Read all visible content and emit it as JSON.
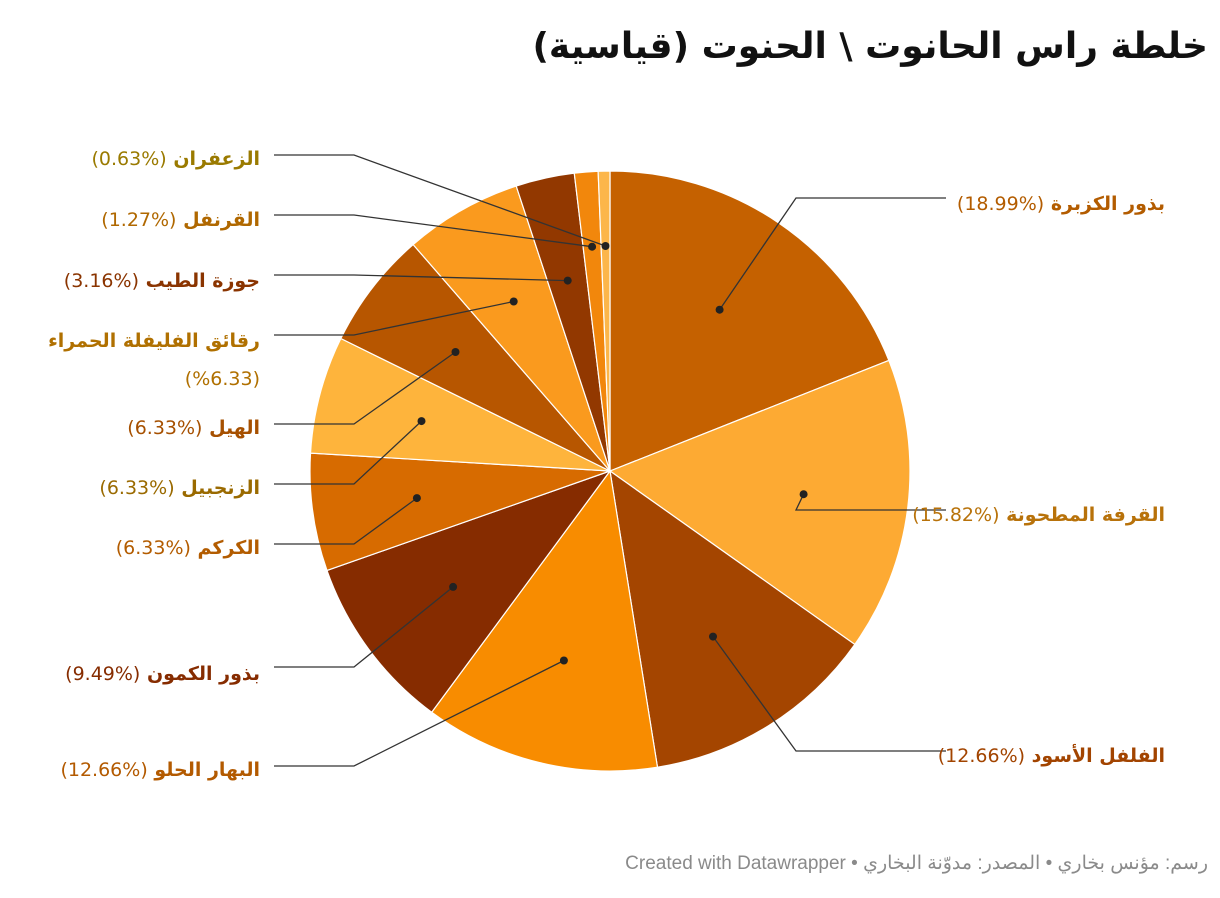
{
  "colors": {
    "title": "#111111",
    "footer": "#8a8a8a",
    "leader_line": "#333333"
  },
  "chart_data": {
    "type": "pie",
    "title": "خلطة راس الحانوت \\ الحنوت (قياسية)",
    "legend": "none",
    "slices": [
      {
        "label": "بذور الكزبرة",
        "pct_text": "(%18.99)",
        "value": 18.99,
        "color": "#c56100",
        "label_color": "#b35c00"
      },
      {
        "label": "القرفة المطحونة",
        "pct_text": "(%15.82)",
        "value": 15.82,
        "color": "#fdaa33",
        "label_color": "#b8720a"
      },
      {
        "label": "الفلفل الأسود",
        "pct_text": "(%12.66)",
        "value": 12.66,
        "color": "#a44500",
        "label_color": "#a24400"
      },
      {
        "label": "البهار الحلو",
        "pct_text": "(%12.66)",
        "value": 12.66,
        "color": "#f88c00",
        "label_color": "#b35a00"
      },
      {
        "label": "بذور الكمون",
        "pct_text": "(%9.49)",
        "value": 9.49,
        "color": "#862c00",
        "label_color": "#862c00"
      },
      {
        "label": "الكركم",
        "pct_text": "(%6.33)",
        "value": 6.33,
        "color": "#d76b00",
        "label_color": "#b35c00"
      },
      {
        "label": "الزنجبيل",
        "pct_text": "(%6.33)",
        "value": 6.33,
        "color": "#feb43c",
        "label_color": "#9a6a00"
      },
      {
        "label": "الهيل",
        "pct_text": "(%6.33)",
        "value": 6.33,
        "color": "#b75600",
        "label_color": "#a65000"
      },
      {
        "label": "رقائق الفليفلة الحمراء",
        "pct_text": "(%6.33)",
        "value": 6.33,
        "color": "#fa9a1e",
        "label_color": "#b07000"
      },
      {
        "label": "جوزة الطيب",
        "pct_text": "(%3.16)",
        "value": 3.16,
        "color": "#923800",
        "label_color": "#8a3400"
      },
      {
        "label": "القرنفل",
        "pct_text": "(%1.27)",
        "value": 1.27,
        "color": "#f2870c",
        "label_color": "#b06800"
      },
      {
        "label": "الزعفران",
        "pct_text": "(%0.63)",
        "value": 0.63,
        "color": "#fcb64a",
        "label_color": "#9a7a00"
      }
    ]
  },
  "footer": {
    "text": "رسم: مؤنس بخاري • المصدر: مدوّنة البخاري • Created with Datawrapper"
  }
}
